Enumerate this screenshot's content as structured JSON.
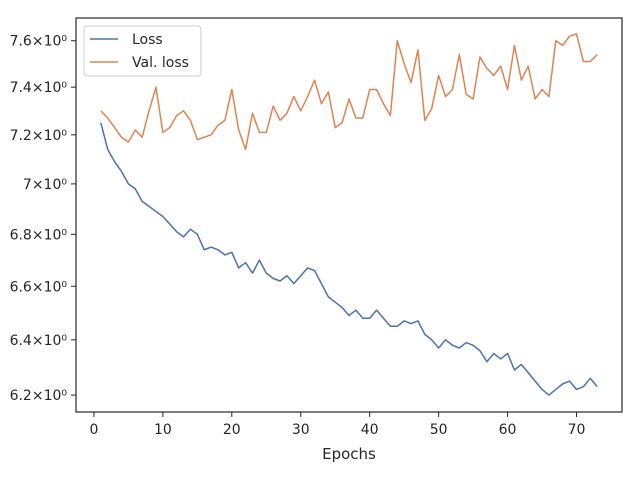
{
  "chart_data": {
    "type": "line",
    "title": "",
    "xlabel": "Epochs",
    "ylabel": "",
    "yscale": "log",
    "xlim": [
      -2.6,
      76.6
    ],
    "ylim": [
      6.14,
      7.7
    ],
    "x_ticks": [
      0,
      10,
      20,
      30,
      40,
      50,
      60,
      70
    ],
    "x_tick_labels": [
      "0",
      "10",
      "20",
      "30",
      "40",
      "50",
      "60",
      "70"
    ],
    "y_ticks": [
      6.2,
      6.4,
      6.6,
      6.8,
      7.0,
      7.2,
      7.4,
      7.6
    ],
    "y_tick_labels": [
      "6.2×10⁰",
      "6.4×10⁰",
      "6.6×10⁰",
      "6.8×10⁰",
      "7×10⁰",
      "7.2×10⁰",
      "7.4×10⁰",
      "7.6×10⁰"
    ],
    "grid": false,
    "legend": "top-left",
    "x": [
      1,
      2,
      3,
      4,
      5,
      6,
      7,
      8,
      9,
      10,
      11,
      12,
      13,
      14,
      15,
      16,
      17,
      18,
      19,
      20,
      21,
      22,
      23,
      24,
      25,
      26,
      27,
      28,
      29,
      30,
      31,
      32,
      33,
      34,
      35,
      36,
      37,
      38,
      39,
      40,
      41,
      42,
      43,
      44,
      45,
      46,
      47,
      48,
      49,
      50,
      51,
      52,
      53,
      54,
      55,
      56,
      57,
      58,
      59,
      60,
      61,
      62,
      63,
      64,
      65,
      66,
      67,
      68,
      69,
      70,
      71,
      72,
      73
    ],
    "series": [
      {
        "name": "Loss",
        "color": "#4c72b0",
        "values": [
          7.25,
          7.14,
          7.09,
          7.05,
          7.0,
          6.98,
          6.93,
          6.91,
          6.89,
          6.87,
          6.84,
          6.81,
          6.79,
          6.82,
          6.8,
          6.74,
          6.75,
          6.74,
          6.72,
          6.73,
          6.67,
          6.69,
          6.65,
          6.7,
          6.65,
          6.63,
          6.62,
          6.64,
          6.61,
          6.64,
          6.67,
          6.66,
          6.61,
          6.56,
          6.54,
          6.52,
          6.49,
          6.51,
          6.48,
          6.48,
          6.51,
          6.48,
          6.45,
          6.45,
          6.47,
          6.46,
          6.47,
          6.42,
          6.4,
          6.37,
          6.4,
          6.38,
          6.37,
          6.39,
          6.38,
          6.36,
          6.32,
          6.35,
          6.33,
          6.35,
          6.29,
          6.31,
          6.28,
          6.25,
          6.22,
          6.2,
          6.22,
          6.24,
          6.25,
          6.22,
          6.23,
          6.26,
          6.23
        ]
      },
      {
        "name": "Val. loss",
        "color": "#dd8452",
        "values": [
          7.3,
          7.27,
          7.23,
          7.19,
          7.17,
          7.22,
          7.19,
          7.3,
          7.4,
          7.21,
          7.23,
          7.28,
          7.3,
          7.26,
          7.18,
          7.19,
          7.2,
          7.24,
          7.26,
          7.39,
          7.22,
          7.14,
          7.29,
          7.21,
          7.21,
          7.32,
          7.26,
          7.29,
          7.36,
          7.3,
          7.36,
          7.43,
          7.33,
          7.38,
          7.23,
          7.25,
          7.35,
          7.27,
          7.27,
          7.39,
          7.39,
          7.33,
          7.28,
          7.6,
          7.5,
          7.42,
          7.56,
          7.26,
          7.31,
          7.45,
          7.36,
          7.39,
          7.54,
          7.37,
          7.35,
          7.53,
          7.48,
          7.45,
          7.49,
          7.39,
          7.58,
          7.43,
          7.49,
          7.35,
          7.39,
          7.36,
          7.6,
          7.58,
          7.62,
          7.63,
          7.51,
          7.51,
          7.54
        ]
      }
    ]
  }
}
